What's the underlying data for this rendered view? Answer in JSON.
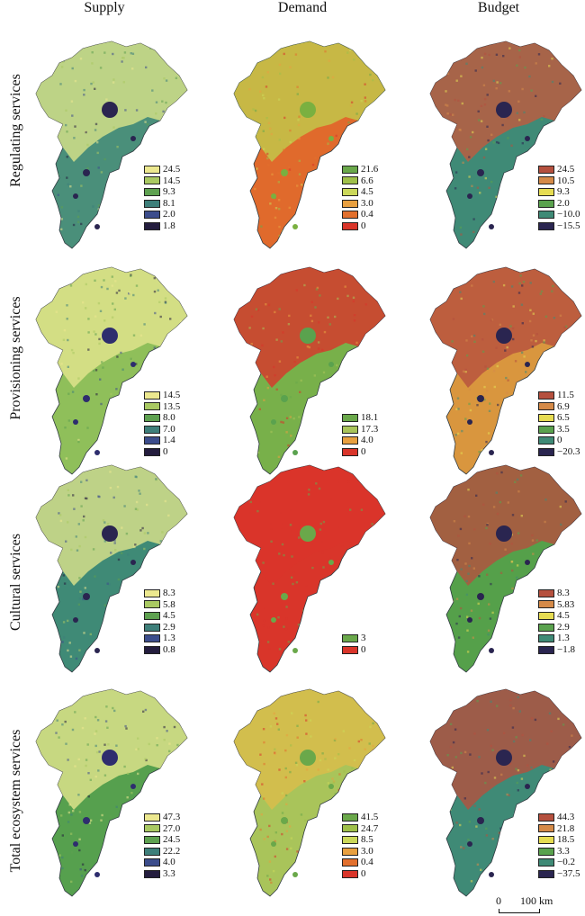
{
  "columns": [
    "Supply",
    "Demand",
    "Budget"
  ],
  "rows": [
    "Regulating services",
    "Provisioning services",
    "Cultural services",
    "Total ecosystem services"
  ],
  "scale": {
    "zero": "0",
    "distance": "100 km"
  },
  "panels": [
    [
      {
        "fill": "#4a8f7a",
        "accent": "#d9e48a",
        "urban": "#2a2550",
        "legend": [
          [
            "24.5",
            "#ece88f"
          ],
          [
            "14.5",
            "#a9c962"
          ],
          [
            "9.3",
            "#5ea150"
          ],
          [
            "8.1",
            "#3e7f7a"
          ],
          [
            "2.0",
            "#3c4d8c"
          ],
          [
            "1.8",
            "#241d3e"
          ]
        ]
      },
      {
        "fill": "#e06a2c",
        "accent": "#c0cc4c",
        "urban": "#7ab040",
        "legend": [
          [
            "21.6",
            "#6aa84a"
          ],
          [
            "6.6",
            "#9fc04a"
          ],
          [
            "4.5",
            "#cbd85a"
          ],
          [
            "3.0",
            "#e8a040"
          ],
          [
            "0.4",
            "#e2702e"
          ],
          [
            "0",
            "#d9352a"
          ]
        ]
      },
      {
        "fill": "#3f8a76",
        "accent": "#c25a3e",
        "urban": "#2a2550",
        "legend": [
          [
            "24.5",
            "#b5503e"
          ],
          [
            "10.5",
            "#d58a48"
          ],
          [
            "9.3",
            "#e6dc52"
          ],
          [
            "2.0",
            "#5aa24e"
          ],
          [
            "−10.0",
            "#3f8a76"
          ],
          [
            "−15.5",
            "#2a2550"
          ]
        ]
      }
    ],
    [
      {
        "fill": "#8fbf5a",
        "accent": "#e3e68e",
        "urban": "#2e2d6e",
        "legend": [
          [
            "14.5",
            "#ece88f"
          ],
          [
            "13.5",
            "#a9c962"
          ],
          [
            "8.0",
            "#5ea150"
          ],
          [
            "7.0",
            "#3e7f7a"
          ],
          [
            "1.4",
            "#3c4d8c"
          ],
          [
            "0",
            "#241d3e"
          ]
        ]
      },
      {
        "fill": "#78b04a",
        "accent": "#d9352a",
        "urban": "#5aa24e",
        "legend": [
          [
            "18.1",
            "#6aa84a"
          ],
          [
            "17.3",
            "#a9c45a"
          ],
          [
            "4.0",
            "#e8a040"
          ],
          [
            "0",
            "#d9352a"
          ]
        ]
      },
      {
        "fill": "#d9963e",
        "accent": "#b5503e",
        "urban": "#2a2550",
        "legend": [
          [
            "11.5",
            "#b5503e"
          ],
          [
            "6.9",
            "#d58a48"
          ],
          [
            "6.5",
            "#e6dc52"
          ],
          [
            "3.5",
            "#5aa24e"
          ],
          [
            "0",
            "#3f8a76"
          ],
          [
            "−20.3",
            "#2a2550"
          ]
        ]
      }
    ],
    [
      {
        "fill": "#3f8a76",
        "accent": "#dfe38c",
        "urban": "#2a2550",
        "legend": [
          [
            "8.3",
            "#ece88f"
          ],
          [
            "5.8",
            "#a9c962"
          ],
          [
            "4.5",
            "#5ea150"
          ],
          [
            "2.9",
            "#3e7f7a"
          ],
          [
            "1.3",
            "#3c4d8c"
          ],
          [
            "0.8",
            "#241d3e"
          ]
        ]
      },
      {
        "fill": "#d9352a",
        "accent": "#d9352a",
        "urban": "#6aa84a",
        "legend": [
          [
            "3",
            "#6aa84a"
          ],
          [
            "0",
            "#d9352a"
          ]
        ]
      },
      {
        "fill": "#55a04a",
        "accent": "#b5503e",
        "urban": "#2a2550",
        "legend": [
          [
            "8.3",
            "#b5503e"
          ],
          [
            "5.83",
            "#d58a48"
          ],
          [
            "4.5",
            "#e6dc52"
          ],
          [
            "2.9",
            "#5aa24e"
          ],
          [
            "1.3",
            "#3f8a76"
          ],
          [
            "−1.8",
            "#2a2550"
          ]
        ]
      }
    ],
    [
      {
        "fill": "#56a04e",
        "accent": "#e3e68e",
        "urban": "#2e2d6e",
        "legend": [
          [
            "47.3",
            "#ece88f"
          ],
          [
            "27.0",
            "#a9c962"
          ],
          [
            "24.5",
            "#5ea150"
          ],
          [
            "22.2",
            "#3e7f7a"
          ],
          [
            "4.0",
            "#3c4d8c"
          ],
          [
            "3.3",
            "#241d3e"
          ]
        ]
      },
      {
        "fill": "#a9c45a",
        "accent": "#dcbd4a",
        "urban": "#6aa84a",
        "legend": [
          [
            "41.5",
            "#6aa84a"
          ],
          [
            "24.7",
            "#9fc04a"
          ],
          [
            "8.5",
            "#cbd85a"
          ],
          [
            "3.0",
            "#e8a040"
          ],
          [
            "0.4",
            "#e2702e"
          ],
          [
            "0",
            "#d9352a"
          ]
        ]
      },
      {
        "fill": "#3f8a76",
        "accent": "#b5503e",
        "urban": "#2a2550",
        "legend": [
          [
            "44.3",
            "#b5503e"
          ],
          [
            "21.8",
            "#d58a48"
          ],
          [
            "18.5",
            "#e6dc52"
          ],
          [
            "3.3",
            "#5aa24e"
          ],
          [
            "−0.2",
            "#3f8a76"
          ],
          [
            "−37.5",
            "#2a2550"
          ]
        ]
      }
    ]
  ]
}
